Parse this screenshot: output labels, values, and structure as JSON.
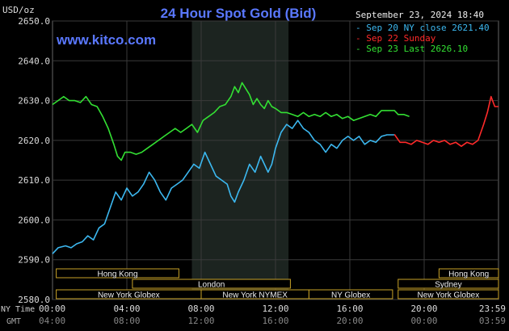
{
  "chart_data": {
    "type": "line",
    "title": "24 Hour Spot Gold (Bid)",
    "timestamp": "September 23, 2024 18:40",
    "watermark": "www.kitco.com",
    "y_unit": "USD/oz",
    "ylim": [
      2580,
      2650
    ],
    "y_ticks": [
      "2650.0",
      "2640.0",
      "2630.0",
      "2620.0",
      "2610.0",
      "2600.0",
      "2590.0",
      "2580.0"
    ],
    "y_tick_values": [
      2650,
      2640,
      2630,
      2620,
      2610,
      2600,
      2590,
      2580
    ],
    "xlim": [
      0,
      24
    ],
    "x_ticks_ny": [
      "00:00",
      "04:00",
      "08:00",
      "12:00",
      "16:00",
      "20:00",
      "23:59"
    ],
    "x_ticks_gmt": [
      "04:00",
      "08:00",
      "12:00",
      "16:00",
      "20:00",
      "00:00",
      "03:59"
    ],
    "x_tick_hours": [
      0,
      4,
      8,
      12,
      16,
      20,
      24
    ],
    "x_label_ny": "NY Time",
    "x_label_gmt": "GMT",
    "grid": true,
    "legend_placement": "top-right",
    "highlight_range": [
      7.5,
      12.7
    ],
    "series": [
      {
        "name": "Sep 20 NY close 2621.40",
        "color": "#3cb8f0",
        "points": [
          [
            0,
            2591.5
          ],
          [
            0.3,
            2593
          ],
          [
            0.7,
            2593.5
          ],
          [
            1.0,
            2593
          ],
          [
            1.3,
            2594
          ],
          [
            1.6,
            2594.5
          ],
          [
            1.9,
            2596
          ],
          [
            2.2,
            2595
          ],
          [
            2.5,
            2598
          ],
          [
            2.8,
            2599
          ],
          [
            3.1,
            2603
          ],
          [
            3.4,
            2607
          ],
          [
            3.7,
            2605
          ],
          [
            4.0,
            2608
          ],
          [
            4.3,
            2606
          ],
          [
            4.6,
            2607
          ],
          [
            4.9,
            2609
          ],
          [
            5.2,
            2612
          ],
          [
            5.5,
            2610
          ],
          [
            5.8,
            2607
          ],
          [
            6.1,
            2605
          ],
          [
            6.4,
            2608
          ],
          [
            6.7,
            2609
          ],
          [
            7.0,
            2610
          ],
          [
            7.3,
            2612
          ],
          [
            7.6,
            2614
          ],
          [
            7.9,
            2613
          ],
          [
            8.2,
            2617
          ],
          [
            8.5,
            2614
          ],
          [
            8.8,
            2611
          ],
          [
            9.1,
            2610
          ],
          [
            9.4,
            2609
          ],
          [
            9.6,
            2606
          ],
          [
            9.8,
            2604.5
          ],
          [
            10.0,
            2607
          ],
          [
            10.3,
            2610
          ],
          [
            10.6,
            2614
          ],
          [
            10.9,
            2612
          ],
          [
            11.2,
            2616
          ],
          [
            11.4,
            2614
          ],
          [
            11.6,
            2612
          ],
          [
            11.8,
            2614
          ],
          [
            12.0,
            2618
          ],
          [
            12.3,
            2622
          ],
          [
            12.6,
            2624
          ],
          [
            12.9,
            2623
          ],
          [
            13.2,
            2625
          ],
          [
            13.5,
            2623
          ],
          [
            13.8,
            2622
          ],
          [
            14.1,
            2620
          ],
          [
            14.4,
            2619
          ],
          [
            14.7,
            2617
          ],
          [
            15.0,
            2619
          ],
          [
            15.3,
            2618
          ],
          [
            15.6,
            2620
          ],
          [
            15.9,
            2621
          ],
          [
            16.2,
            2620
          ],
          [
            16.5,
            2621
          ],
          [
            16.8,
            2619
          ],
          [
            17.1,
            2620
          ],
          [
            17.4,
            2619.5
          ],
          [
            17.7,
            2621
          ],
          [
            18.0,
            2621.4
          ],
          [
            18.4,
            2621.4
          ]
        ]
      },
      {
        "name": "Sep 22 Sunday",
        "color": "#ff2a2a",
        "points": [
          [
            18.4,
            2621.5
          ],
          [
            18.7,
            2619.5
          ],
          [
            19.0,
            2619.5
          ],
          [
            19.3,
            2619
          ],
          [
            19.6,
            2620
          ],
          [
            19.9,
            2619.5
          ],
          [
            20.2,
            2619
          ],
          [
            20.5,
            2620
          ],
          [
            20.8,
            2619.5
          ],
          [
            21.1,
            2620
          ],
          [
            21.4,
            2619
          ],
          [
            21.7,
            2619.5
          ],
          [
            22.0,
            2618.5
          ],
          [
            22.3,
            2619.5
          ],
          [
            22.6,
            2619
          ],
          [
            22.9,
            2620
          ],
          [
            23.2,
            2624
          ],
          [
            23.4,
            2627
          ],
          [
            23.6,
            2631
          ],
          [
            23.8,
            2628.5
          ],
          [
            24.0,
            2628.5
          ]
        ]
      },
      {
        "name": "Sep 23 Last 2626.10",
        "color": "#33e033",
        "points": [
          [
            0,
            2629
          ],
          [
            0.3,
            2630
          ],
          [
            0.6,
            2631
          ],
          [
            0.9,
            2630
          ],
          [
            1.2,
            2630
          ],
          [
            1.5,
            2629.5
          ],
          [
            1.8,
            2631
          ],
          [
            2.1,
            2629
          ],
          [
            2.4,
            2628.5
          ],
          [
            2.7,
            2626
          ],
          [
            3.0,
            2623
          ],
          [
            3.3,
            2619
          ],
          [
            3.5,
            2616
          ],
          [
            3.7,
            2615
          ],
          [
            3.9,
            2617
          ],
          [
            4.2,
            2617
          ],
          [
            4.5,
            2616.5
          ],
          [
            4.8,
            2617
          ],
          [
            5.1,
            2618
          ],
          [
            5.4,
            2619
          ],
          [
            5.7,
            2620
          ],
          [
            6.0,
            2621
          ],
          [
            6.3,
            2622
          ],
          [
            6.6,
            2623
          ],
          [
            6.9,
            2622
          ],
          [
            7.2,
            2623
          ],
          [
            7.5,
            2624
          ],
          [
            7.8,
            2622
          ],
          [
            8.1,
            2625
          ],
          [
            8.4,
            2626
          ],
          [
            8.7,
            2627
          ],
          [
            9.0,
            2628.5
          ],
          [
            9.3,
            2629
          ],
          [
            9.6,
            2631
          ],
          [
            9.8,
            2633.5
          ],
          [
            10.0,
            2632
          ],
          [
            10.2,
            2634.5
          ],
          [
            10.4,
            2633
          ],
          [
            10.6,
            2631.5
          ],
          [
            10.8,
            2629
          ],
          [
            11.0,
            2630.5
          ],
          [
            11.2,
            2629
          ],
          [
            11.4,
            2628
          ],
          [
            11.6,
            2630
          ],
          [
            11.8,
            2628.5
          ],
          [
            12.0,
            2628
          ],
          [
            12.3,
            2627
          ],
          [
            12.6,
            2627
          ],
          [
            12.9,
            2626.5
          ],
          [
            13.2,
            2626
          ],
          [
            13.5,
            2627
          ],
          [
            13.8,
            2626
          ],
          [
            14.1,
            2626.5
          ],
          [
            14.4,
            2626
          ],
          [
            14.7,
            2627
          ],
          [
            15.0,
            2626
          ],
          [
            15.3,
            2626.5
          ],
          [
            15.6,
            2625.5
          ],
          [
            15.9,
            2626
          ],
          [
            16.2,
            2625
          ],
          [
            16.5,
            2625.5
          ],
          [
            16.8,
            2626
          ],
          [
            17.1,
            2626.5
          ],
          [
            17.4,
            2626
          ],
          [
            17.7,
            2627.5
          ],
          [
            18.0,
            2627.5
          ],
          [
            18.4,
            2627.5
          ],
          [
            18.6,
            2626.5
          ],
          [
            18.9,
            2626.5
          ],
          [
            19.2,
            2626
          ]
        ]
      }
    ],
    "sessions_bottom": [
      {
        "label": "Hong Kong",
        "start": 0.2,
        "end": 6.8,
        "row": 1
      },
      {
        "label": "London",
        "start": 4.3,
        "end": 12.8,
        "row": 2
      },
      {
        "label": "New York Globex",
        "start": 0.2,
        "end": 8.0,
        "row": 3
      },
      {
        "label": "New York NYMEX",
        "start": 8.0,
        "end": 13.8,
        "row": 3
      },
      {
        "label": "NY Globex",
        "start": 13.8,
        "end": 18.3,
        "row": 3
      },
      {
        "label": "Hong Kong",
        "start": 20.8,
        "end": 24,
        "row": 1
      },
      {
        "label": "Sydney",
        "start": 18.6,
        "end": 24,
        "row": 2
      },
      {
        "label": "New York Globex",
        "start": 18.6,
        "end": 24,
        "row": 3
      }
    ]
  }
}
